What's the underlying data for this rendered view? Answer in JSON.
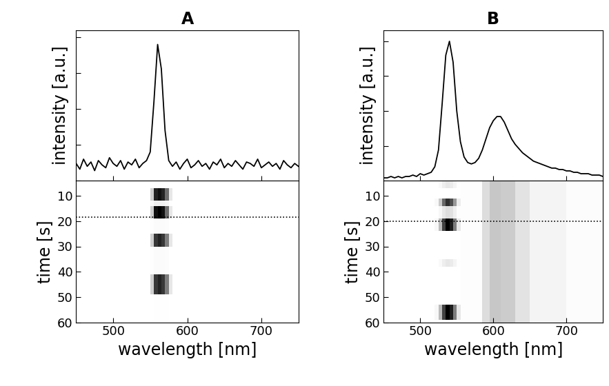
{
  "chart_data": [
    {
      "type": "line",
      "title": "A",
      "ylabel": "intensity [a.u.]",
      "color": "#000000",
      "x": [
        450,
        455,
        460,
        465,
        470,
        475,
        480,
        485,
        490,
        495,
        500,
        505,
        510,
        515,
        520,
        525,
        530,
        535,
        540,
        545,
        550,
        555,
        560,
        565,
        570,
        575,
        580,
        585,
        590,
        595,
        600,
        605,
        610,
        615,
        620,
        625,
        630,
        635,
        640,
        645,
        650,
        655,
        660,
        665,
        670,
        675,
        680,
        685,
        690,
        695,
        700,
        705,
        710,
        715,
        720,
        725,
        730,
        735,
        740,
        745,
        750
      ],
      "values": [
        0.12,
        0.08,
        0.15,
        0.1,
        0.13,
        0.07,
        0.14,
        0.11,
        0.09,
        0.16,
        0.12,
        0.1,
        0.14,
        0.08,
        0.13,
        0.11,
        0.15,
        0.09,
        0.12,
        0.14,
        0.2,
        0.55,
        0.95,
        0.78,
        0.35,
        0.14,
        0.1,
        0.13,
        0.08,
        0.12,
        0.15,
        0.09,
        0.11,
        0.14,
        0.1,
        0.12,
        0.08,
        0.13,
        0.11,
        0.15,
        0.09,
        0.12,
        0.1,
        0.14,
        0.11,
        0.08,
        0.13,
        0.12,
        0.1,
        0.15,
        0.09,
        0.11,
        0.13,
        0.1,
        0.12,
        0.08,
        0.14,
        0.11,
        0.09,
        0.12,
        0.1
      ],
      "xlim": [
        450,
        750
      ],
      "xticks": [
        500,
        600,
        700
      ],
      "ylim": [
        0,
        1.05
      ],
      "yticks": [
        0,
        0.25,
        0.5,
        0.75,
        1.0
      ],
      "tick_labels": false
    },
    {
      "type": "heatmap",
      "xlabel": "wavelength [nm]",
      "ylabel": "time [s]",
      "x_edges": [
        450,
        550,
        555,
        560,
        565,
        570,
        575,
        580,
        750
      ],
      "y_edges": [
        4,
        7,
        12,
        14,
        19,
        25,
        30,
        41,
        49,
        60
      ],
      "cells": [
        [
          0.05,
          0.05,
          0.06,
          0.06,
          0.06,
          0.06,
          0.05,
          0.05
        ],
        [
          0.05,
          0.3,
          0.8,
          0.85,
          0.8,
          0.6,
          0.2,
          0.05
        ],
        [
          0.05,
          0.08,
          0.15,
          0.15,
          0.15,
          0.12,
          0.06,
          0.05
        ],
        [
          0.05,
          0.3,
          0.85,
          0.9,
          0.85,
          0.6,
          0.2,
          0.05
        ],
        [
          0.05,
          0.06,
          0.08,
          0.08,
          0.08,
          0.07,
          0.05,
          0.05
        ],
        [
          0.05,
          0.3,
          0.75,
          0.8,
          0.75,
          0.55,
          0.2,
          0.05
        ],
        [
          0.05,
          0.06,
          0.08,
          0.08,
          0.08,
          0.07,
          0.05,
          0.05
        ],
        [
          0.05,
          0.3,
          0.75,
          0.8,
          0.75,
          0.55,
          0.2,
          0.05
        ],
        [
          0.05,
          0.05,
          0.06,
          0.06,
          0.06,
          0.06,
          0.05,
          0.05
        ]
      ],
      "hline": 18.5,
      "xlim": [
        450,
        750
      ],
      "xticks": [
        500,
        600,
        700
      ],
      "ylim": [
        60,
        4
      ],
      "yticks": [
        10,
        20,
        30,
        40,
        50,
        60
      ]
    },
    {
      "type": "line",
      "title": "B",
      "ylabel": "intensity [a.u.]",
      "color": "#000000",
      "x": [
        450,
        455,
        460,
        465,
        470,
        475,
        480,
        485,
        490,
        495,
        500,
        505,
        510,
        515,
        520,
        525,
        530,
        535,
        540,
        545,
        550,
        555,
        560,
        565,
        570,
        575,
        580,
        585,
        590,
        595,
        600,
        605,
        610,
        615,
        620,
        625,
        630,
        635,
        640,
        645,
        650,
        655,
        660,
        665,
        670,
        675,
        680,
        685,
        690,
        695,
        700,
        705,
        710,
        715,
        720,
        725,
        730,
        735,
        740,
        745,
        750
      ],
      "values": [
        0.02,
        0.02,
        0.03,
        0.02,
        0.03,
        0.02,
        0.03,
        0.03,
        0.04,
        0.03,
        0.05,
        0.04,
        0.05,
        0.06,
        0.1,
        0.22,
        0.55,
        0.9,
        1.0,
        0.85,
        0.5,
        0.28,
        0.17,
        0.13,
        0.12,
        0.13,
        0.16,
        0.22,
        0.3,
        0.38,
        0.43,
        0.46,
        0.46,
        0.42,
        0.36,
        0.3,
        0.26,
        0.23,
        0.2,
        0.18,
        0.16,
        0.14,
        0.13,
        0.12,
        0.11,
        0.1,
        0.09,
        0.09,
        0.08,
        0.08,
        0.07,
        0.07,
        0.06,
        0.06,
        0.05,
        0.05,
        0.05,
        0.04,
        0.04,
        0.04,
        0.03
      ],
      "xlim": [
        450,
        750
      ],
      "xticks": [
        500,
        600,
        700
      ],
      "ylim": [
        0,
        1.08
      ],
      "yticks": [
        0,
        0.25,
        0.5,
        0.75,
        1.0
      ],
      "tick_labels": false
    },
    {
      "type": "heatmap",
      "xlabel": "wavelength [nm]",
      "ylabel": "time [s]",
      "x_edges": [
        450,
        520,
        525,
        530,
        535,
        540,
        545,
        550,
        555,
        585,
        595,
        610,
        630,
        650,
        700,
        750
      ],
      "y_edges": [
        4,
        7,
        11,
        14,
        19,
        24,
        35,
        38,
        53,
        59,
        60
      ],
      "cells": [
        [
          0.03,
          0.03,
          0.08,
          0.16,
          0.2,
          0.18,
          0.12,
          0.04,
          0.05,
          0.25,
          0.35,
          0.33,
          0.22,
          0.12,
          0.06
        ],
        [
          0.03,
          0.03,
          0.03,
          0.03,
          0.03,
          0.03,
          0.03,
          0.03,
          0.05,
          0.25,
          0.35,
          0.33,
          0.22,
          0.12,
          0.06
        ],
        [
          0.03,
          0.09,
          0.34,
          0.68,
          0.85,
          0.77,
          0.51,
          0.17,
          0.05,
          0.25,
          0.35,
          0.33,
          0.22,
          0.12,
          0.06
        ],
        [
          0.03,
          0.03,
          0.1,
          0.2,
          0.25,
          0.23,
          0.15,
          0.05,
          0.05,
          0.25,
          0.35,
          0.33,
          0.22,
          0.12,
          0.06
        ],
        [
          0.03,
          0.1,
          0.4,
          0.8,
          1.0,
          0.9,
          0.6,
          0.2,
          0.05,
          0.25,
          0.35,
          0.33,
          0.22,
          0.12,
          0.06
        ],
        [
          0.03,
          0.03,
          0.03,
          0.03,
          0.03,
          0.03,
          0.03,
          0.03,
          0.05,
          0.25,
          0.35,
          0.33,
          0.22,
          0.12,
          0.06
        ],
        [
          0.03,
          0.03,
          0.08,
          0.16,
          0.2,
          0.18,
          0.12,
          0.04,
          0.05,
          0.25,
          0.35,
          0.33,
          0.22,
          0.12,
          0.06
        ],
        [
          0.03,
          0.03,
          0.03,
          0.03,
          0.03,
          0.03,
          0.03,
          0.03,
          0.05,
          0.25,
          0.35,
          0.33,
          0.22,
          0.12,
          0.06
        ],
        [
          0.03,
          0.1,
          0.4,
          0.8,
          1.0,
          0.9,
          0.6,
          0.2,
          0.05,
          0.25,
          0.35,
          0.33,
          0.22,
          0.12,
          0.06
        ],
        [
          0.03,
          0.03,
          0.03,
          0.03,
          0.03,
          0.03,
          0.03,
          0.03,
          0.05,
          0.25,
          0.35,
          0.33,
          0.22,
          0.12,
          0.06
        ]
      ],
      "hline": 20,
      "xlim": [
        450,
        750
      ],
      "xticks": [
        500,
        600,
        700
      ],
      "ylim": [
        60,
        4
      ],
      "yticks": [
        10,
        20,
        30,
        40,
        50,
        60
      ]
    }
  ]
}
